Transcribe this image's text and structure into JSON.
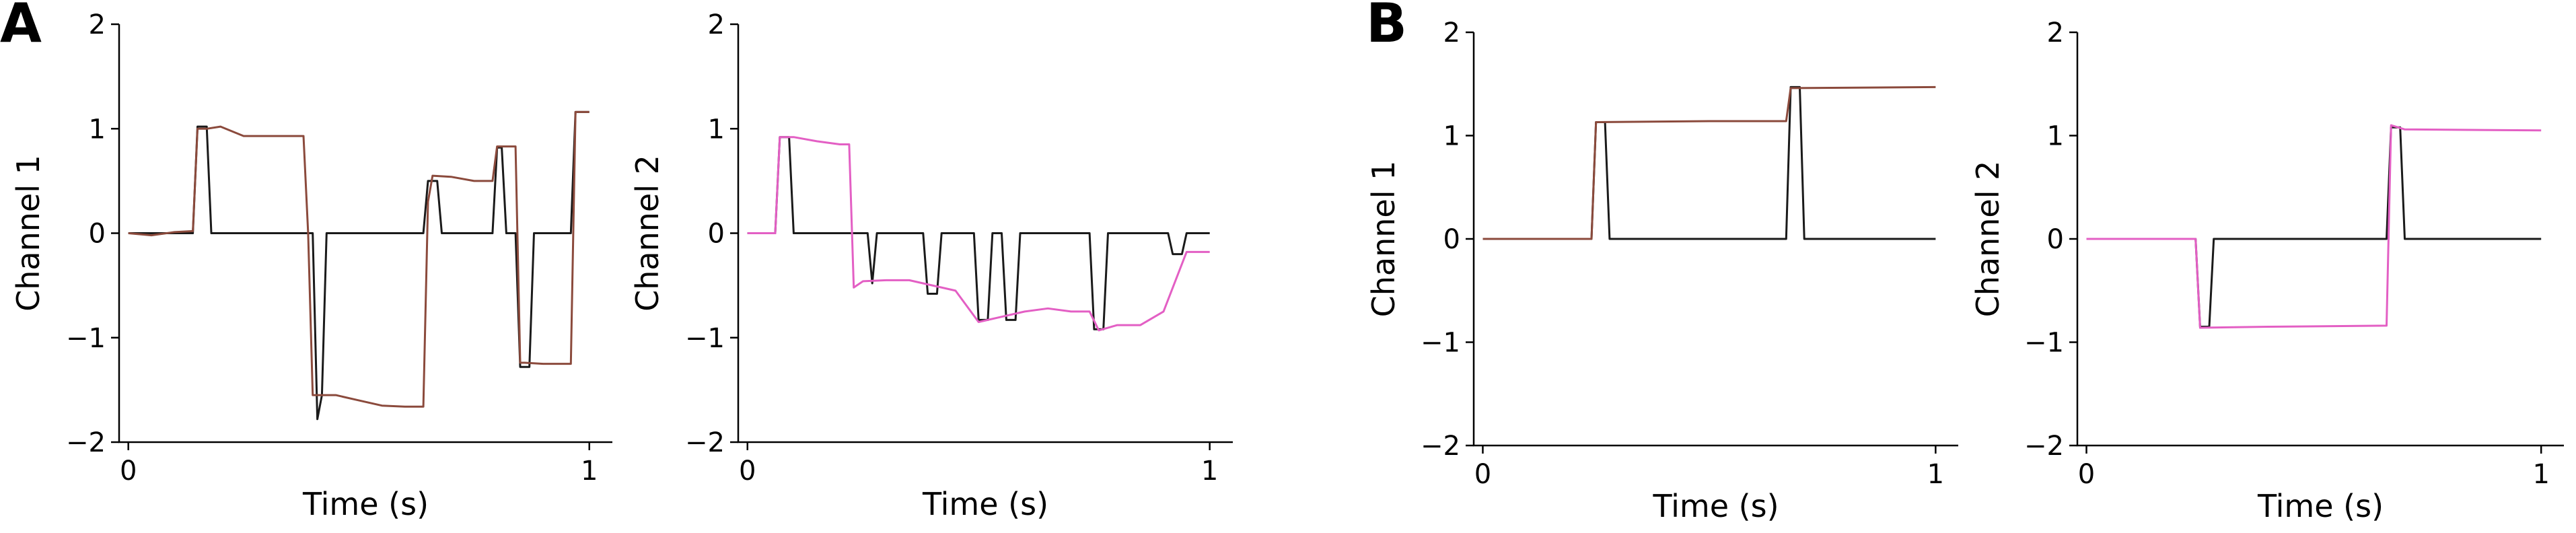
{
  "panel_labels": [
    "A",
    "B"
  ],
  "colors": {
    "target": "#1a1a1a",
    "channel1": "#8b4a3c",
    "channel2": "#e35fc4"
  },
  "chart_data": [
    {
      "panel": "A",
      "type": "line",
      "xlabel": "Time (s)",
      "ylabel": "Channel 1",
      "xlim": [
        -0.02,
        1.05
      ],
      "ylim": [
        -2,
        2
      ],
      "xticks": [
        0,
        1
      ],
      "yticks": [
        -2,
        -1,
        0,
        1,
        2
      ],
      "series": [
        {
          "color": "#1a1a1a",
          "x": [
            0,
            0.14,
            0.15,
            0.17,
            0.18,
            0.4,
            0.41,
            0.42,
            0.43,
            0.64,
            0.65,
            0.67,
            0.68,
            0.79,
            0.8,
            0.81,
            0.82,
            0.84,
            0.85,
            0.87,
            0.88,
            0.96,
            0.97,
            1.0
          ],
          "y": [
            0,
            0,
            1.02,
            1.02,
            0,
            0,
            -1.78,
            -1.55,
            0,
            0,
            0.5,
            0.5,
            0,
            0,
            0.82,
            0.82,
            0,
            0,
            -1.28,
            -1.28,
            0,
            0,
            1.16,
            1.16
          ]
        },
        {
          "color": "#8b4a3c",
          "x": [
            0,
            0.05,
            0.1,
            0.14,
            0.15,
            0.17,
            0.2,
            0.25,
            0.3,
            0.38,
            0.39,
            0.4,
            0.41,
            0.45,
            0.5,
            0.55,
            0.6,
            0.64,
            0.65,
            0.66,
            0.7,
            0.75,
            0.79,
            0.8,
            0.82,
            0.84,
            0.85,
            0.86,
            0.9,
            0.96,
            0.97,
            1.0
          ],
          "y": [
            0,
            -0.02,
            0.01,
            0.02,
            1.0,
            1.0,
            1.02,
            0.93,
            0.93,
            0.93,
            0.0,
            -1.55,
            -1.55,
            -1.55,
            -1.6,
            -1.65,
            -1.66,
            -1.66,
            0.3,
            0.55,
            0.54,
            0.5,
            0.5,
            0.83,
            0.83,
            0.83,
            -1.24,
            -1.24,
            -1.25,
            -1.25,
            1.16,
            1.16
          ]
        }
      ]
    },
    {
      "panel": "A",
      "type": "line",
      "xlabel": "Time (s)",
      "ylabel": "Channel 2",
      "xlim": [
        -0.02,
        1.05
      ],
      "ylim": [
        -2,
        2
      ],
      "xticks": [
        0,
        1
      ],
      "yticks": [
        -2,
        -1,
        0,
        1,
        2
      ],
      "series": [
        {
          "color": "#1a1a1a",
          "x": [
            0,
            0.06,
            0.07,
            0.09,
            0.1,
            0.26,
            0.27,
            0.28,
            0.38,
            0.39,
            0.41,
            0.42,
            0.49,
            0.5,
            0.52,
            0.53,
            0.55,
            0.56,
            0.58,
            0.59,
            0.74,
            0.75,
            0.77,
            0.78,
            0.91,
            0.92,
            0.94,
            0.95,
            1.0
          ],
          "y": [
            0,
            0,
            0.92,
            0.92,
            0,
            0,
            -0.48,
            0,
            0,
            -0.58,
            -0.58,
            0,
            0,
            -0.83,
            -0.83,
            0,
            0,
            -0.83,
            -0.83,
            0,
            0,
            -0.92,
            -0.92,
            0,
            0,
            -0.2,
            -0.2,
            0,
            0
          ]
        },
        {
          "color": "#e35fc4",
          "x": [
            0,
            0.06,
            0.07,
            0.1,
            0.15,
            0.2,
            0.22,
            0.23,
            0.25,
            0.3,
            0.35,
            0.4,
            0.45,
            0.5,
            0.55,
            0.6,
            0.65,
            0.7,
            0.74,
            0.76,
            0.8,
            0.85,
            0.9,
            0.95,
            1.0
          ],
          "y": [
            0,
            0,
            0.92,
            0.92,
            0.88,
            0.85,
            0.85,
            -0.52,
            -0.46,
            -0.45,
            -0.45,
            -0.5,
            -0.55,
            -0.85,
            -0.8,
            -0.75,
            -0.72,
            -0.75,
            -0.75,
            -0.93,
            -0.88,
            -0.88,
            -0.75,
            -0.18,
            -0.18
          ]
        }
      ]
    },
    {
      "panel": "B",
      "type": "line",
      "xlabel": "Time (s)",
      "ylabel": "Channel 1",
      "xlim": [
        -0.02,
        1.05
      ],
      "ylim": [
        -2,
        2
      ],
      "xticks": [
        0,
        1
      ],
      "yticks": [
        -2,
        -1,
        0,
        1,
        2
      ],
      "series": [
        {
          "color": "#1a1a1a",
          "x": [
            0,
            0.24,
            0.25,
            0.27,
            0.28,
            0.67,
            0.68,
            0.7,
            0.71,
            1.0
          ],
          "y": [
            0,
            0,
            1.13,
            1.13,
            0,
            0,
            1.47,
            1.47,
            0,
            0
          ]
        },
        {
          "color": "#8b4a3c",
          "x": [
            0,
            0.24,
            0.25,
            0.5,
            0.67,
            0.68,
            1.0
          ],
          "y": [
            0,
            0,
            1.13,
            1.14,
            1.14,
            1.46,
            1.47
          ]
        }
      ]
    },
    {
      "panel": "B",
      "type": "line",
      "xlabel": "Time (s)",
      "ylabel": "Channel 2",
      "xlim": [
        -0.02,
        1.05
      ],
      "ylim": [
        -2,
        2
      ],
      "xticks": [
        0,
        1
      ],
      "yticks": [
        -2,
        -1,
        0,
        1,
        2
      ],
      "series": [
        {
          "color": "#1a1a1a",
          "x": [
            0,
            0.24,
            0.25,
            0.27,
            0.28,
            0.66,
            0.67,
            0.69,
            0.7,
            1.0
          ],
          "y": [
            0,
            0,
            -0.85,
            -0.85,
            0,
            0,
            1.08,
            1.08,
            0,
            0
          ]
        },
        {
          "color": "#e35fc4",
          "x": [
            0,
            0.24,
            0.25,
            0.4,
            0.66,
            0.67,
            0.7,
            1.0
          ],
          "y": [
            0,
            0,
            -0.86,
            -0.85,
            -0.84,
            1.1,
            1.06,
            1.05
          ]
        }
      ]
    }
  ]
}
